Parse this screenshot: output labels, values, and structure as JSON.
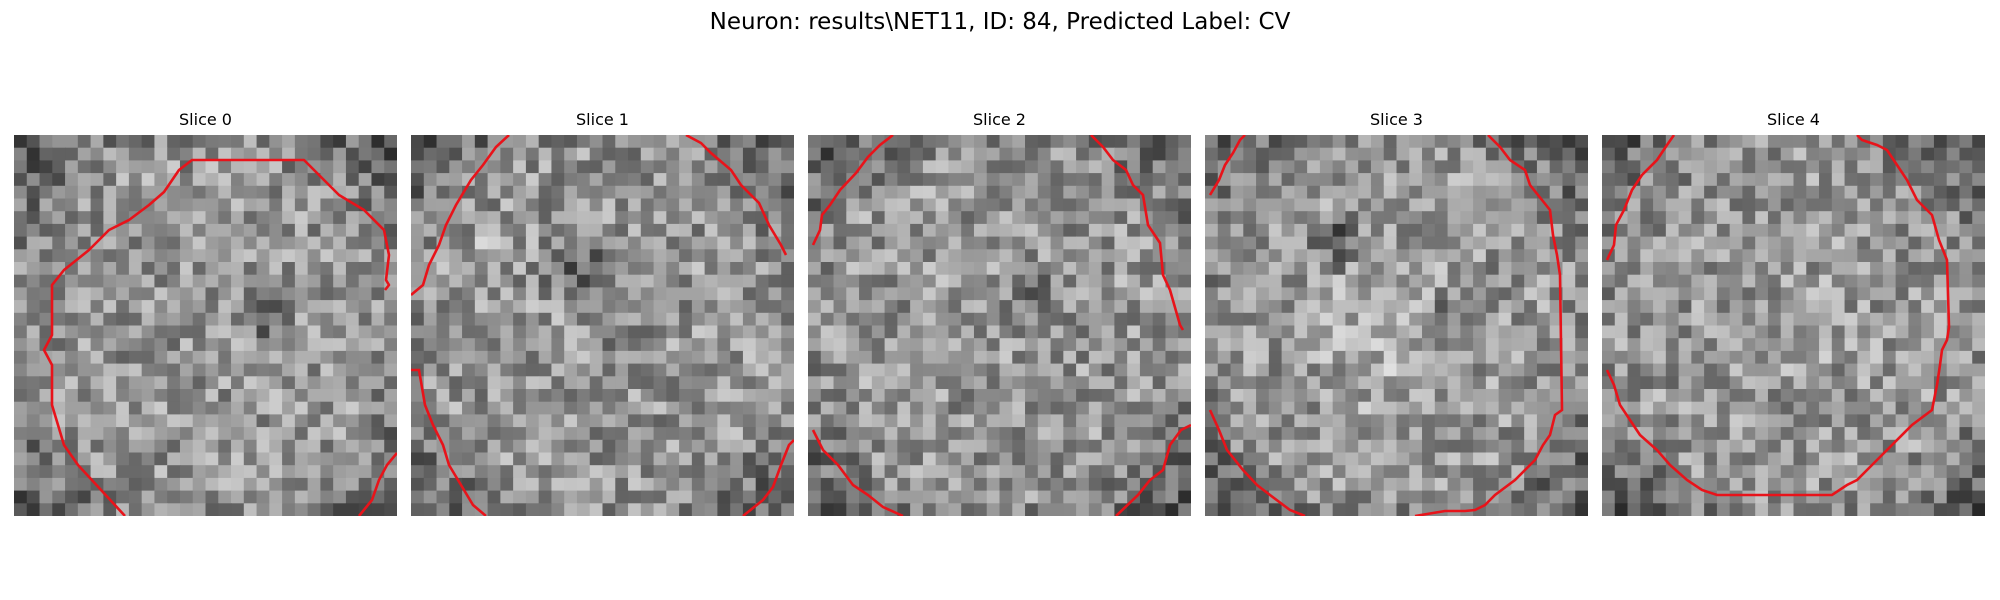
{
  "figure": {
    "title": "Neuron: results\\NET11, ID: 84, Predicted Label: CV"
  },
  "colors": {
    "contour": "#e8131a",
    "background": "#ffffff"
  },
  "panels": [
    {
      "title": "Slice 0"
    },
    {
      "title": "Slice 1"
    },
    {
      "title": "Slice 2"
    },
    {
      "title": "Slice 3"
    },
    {
      "title": "Slice 4"
    }
  ]
}
